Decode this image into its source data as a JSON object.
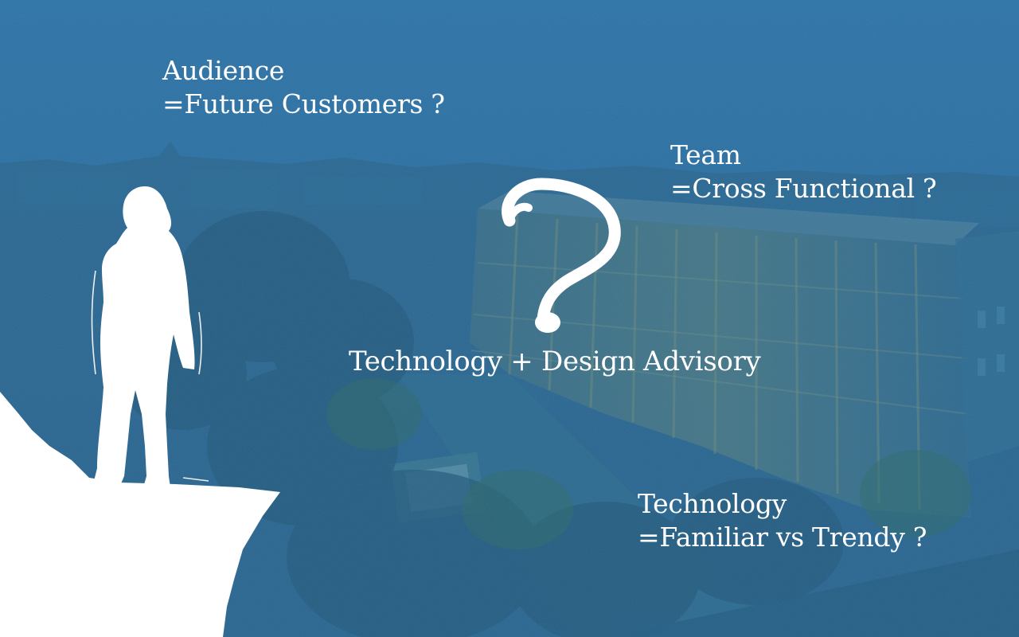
{
  "labels": {
    "audience": {
      "title": "Audience",
      "value": "=Future Customers ?"
    },
    "team": {
      "title": "Team",
      "value": "=Cross Functional ?"
    },
    "technology": {
      "title": "Technology",
      "value": "=Familiar vs Trendy ?"
    },
    "center": "Technology + Design Advisory"
  },
  "icons": {
    "question_mark": "question-mark-icon",
    "person": "person-silhouette-icon"
  },
  "colors": {
    "tint": "#2b6fa0",
    "text": "#ffffff"
  }
}
